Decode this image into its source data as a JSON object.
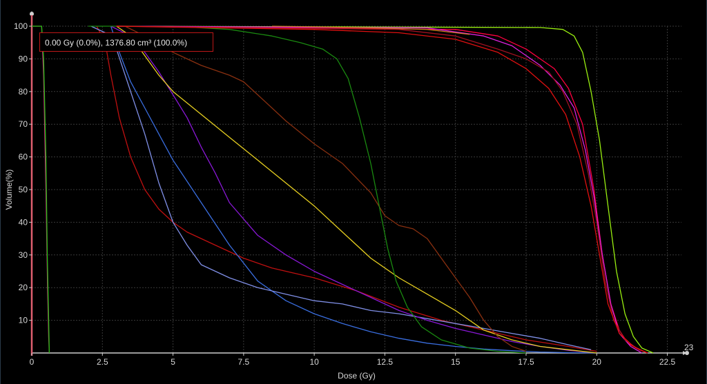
{
  "readout": "0.00 Gy (0.0%), 1376.80 cm³ (100.0%)",
  "axis_max_label": "23",
  "chart_data": {
    "type": "line",
    "xlabel": "Dose (Gy)",
    "ylabel": "Volume(%)",
    "xlim": [
      0,
      23
    ],
    "ylim": [
      0,
      100
    ],
    "xticks": [
      "0",
      "2.5",
      "5",
      "7.5",
      "10",
      "12.5",
      "15",
      "17.5",
      "20",
      "22.5"
    ],
    "yticks": [
      "10",
      "20",
      "30",
      "40",
      "50",
      "60",
      "70",
      "80",
      "90",
      "100"
    ],
    "grid": true,
    "series": [
      {
        "color": "#e0208a",
        "points": [
          [
            0,
            100
          ],
          [
            0.35,
            100
          ],
          [
            0.42,
            85
          ],
          [
            0.5,
            50
          ],
          [
            0.56,
            20
          ],
          [
            0.6,
            5
          ],
          [
            0.62,
            0
          ]
        ]
      },
      {
        "color": "#22c010",
        "points": [
          [
            0,
            100
          ],
          [
            0.35,
            100
          ],
          [
            0.42,
            90
          ],
          [
            0.5,
            60
          ],
          [
            0.55,
            30
          ],
          [
            0.6,
            10
          ],
          [
            0.62,
            0
          ]
        ]
      },
      {
        "color": "#c01010",
        "points": [
          [
            2.3,
            100
          ],
          [
            2.6,
            95
          ],
          [
            2.8,
            85
          ],
          [
            3.1,
            72
          ],
          [
            3.5,
            60
          ],
          [
            4,
            50
          ],
          [
            4.5,
            44
          ],
          [
            5,
            40
          ],
          [
            5.5,
            37
          ],
          [
            6.5,
            33
          ],
          [
            7.5,
            29
          ],
          [
            8.5,
            26
          ],
          [
            10,
            23
          ],
          [
            11.5,
            19
          ],
          [
            13,
            14
          ],
          [
            14.5,
            10
          ],
          [
            16,
            7
          ],
          [
            17.5,
            4
          ],
          [
            19,
            2
          ],
          [
            20,
            0.5
          ]
        ]
      },
      {
        "color": "#3a6ee0",
        "points": [
          [
            2.8,
            100
          ],
          [
            3.1,
            92
          ],
          [
            3.5,
            83
          ],
          [
            4,
            75
          ],
          [
            4.5,
            67
          ],
          [
            5,
            59
          ],
          [
            6,
            46
          ],
          [
            7,
            33
          ],
          [
            8,
            22
          ],
          [
            9,
            16
          ],
          [
            10,
            12
          ],
          [
            11,
            9
          ],
          [
            12,
            6.5
          ],
          [
            13,
            4.5
          ],
          [
            14,
            3
          ],
          [
            15,
            2
          ],
          [
            16,
            1.2
          ],
          [
            17,
            0.7
          ],
          [
            18,
            0.3
          ],
          [
            19,
            0.1
          ],
          [
            20,
            0
          ]
        ]
      },
      {
        "color": "#8090e8",
        "points": [
          [
            2.1,
            100
          ],
          [
            2.6,
            98
          ],
          [
            3,
            93
          ],
          [
            3.5,
            80
          ],
          [
            4,
            67
          ],
          [
            4.5,
            52
          ],
          [
            5,
            40
          ],
          [
            5.5,
            33
          ],
          [
            6,
            27
          ],
          [
            7,
            23
          ],
          [
            8,
            20
          ],
          [
            9,
            18
          ],
          [
            10,
            16
          ],
          [
            11,
            15
          ],
          [
            12,
            13
          ],
          [
            13,
            12
          ],
          [
            14,
            10.5
          ],
          [
            15,
            9
          ],
          [
            16,
            7.5
          ],
          [
            17,
            6
          ],
          [
            18,
            4.5
          ],
          [
            19,
            2.5
          ],
          [
            19.8,
            1
          ]
        ]
      },
      {
        "color": "#8a18d8",
        "points": [
          [
            2.8,
            100
          ],
          [
            3.5,
            97
          ],
          [
            4,
            92
          ],
          [
            4.5,
            86
          ],
          [
            5,
            79
          ],
          [
            5.5,
            72
          ],
          [
            6,
            63
          ],
          [
            6.5,
            55
          ],
          [
            7,
            46
          ],
          [
            8,
            36
          ],
          [
            9,
            30
          ],
          [
            10,
            25
          ],
          [
            11,
            21
          ],
          [
            12,
            17
          ],
          [
            13,
            13
          ],
          [
            14,
            10
          ],
          [
            15,
            7.5
          ],
          [
            16,
            5.5
          ],
          [
            17,
            3.5
          ],
          [
            18,
            2
          ],
          [
            19,
            0.8
          ],
          [
            20,
            0
          ]
        ]
      },
      {
        "color": "#e8d020",
        "points": [
          [
            3,
            100
          ],
          [
            3.5,
            97
          ],
          [
            4,
            91
          ],
          [
            4.5,
            85
          ],
          [
            5,
            80
          ],
          [
            6,
            73
          ],
          [
            7,
            66
          ],
          [
            8,
            59
          ],
          [
            9,
            52
          ],
          [
            10,
            45
          ],
          [
            11,
            37
          ],
          [
            12,
            29
          ],
          [
            13,
            23
          ],
          [
            14,
            18
          ],
          [
            15,
            13
          ],
          [
            16,
            7
          ],
          [
            17,
            4
          ],
          [
            18,
            2
          ],
          [
            19,
            1
          ],
          [
            20,
            0
          ]
        ]
      },
      {
        "color": "#8a3010",
        "points": [
          [
            3.3,
            100
          ],
          [
            4,
            97
          ],
          [
            5,
            92
          ],
          [
            6,
            88
          ],
          [
            7,
            85
          ],
          [
            7.5,
            83
          ],
          [
            8,
            79
          ],
          [
            9,
            71
          ],
          [
            10,
            64
          ],
          [
            11,
            58
          ],
          [
            12,
            49
          ],
          [
            12.5,
            42
          ],
          [
            13,
            39
          ],
          [
            13.5,
            38
          ],
          [
            14,
            35
          ],
          [
            14.5,
            29
          ],
          [
            15,
            23
          ],
          [
            15.5,
            17
          ],
          [
            16,
            10
          ],
          [
            16.5,
            5
          ],
          [
            17,
            2
          ],
          [
            17.5,
            0.5
          ]
        ]
      },
      {
        "color": "#1a8a10",
        "points": [
          [
            2,
            100
          ],
          [
            5,
            100
          ],
          [
            7,
            99
          ],
          [
            8.5,
            97
          ],
          [
            9.5,
            95
          ],
          [
            10.3,
            93
          ],
          [
            10.8,
            90
          ],
          [
            11.2,
            84
          ],
          [
            11.6,
            72
          ],
          [
            12,
            58
          ],
          [
            12.3,
            45
          ],
          [
            12.6,
            32
          ],
          [
            12.9,
            22
          ],
          [
            13.3,
            14
          ],
          [
            13.8,
            8
          ],
          [
            14.5,
            4
          ],
          [
            15.5,
            1.5
          ],
          [
            16.5,
            0.5
          ],
          [
            17.5,
            0
          ]
        ]
      },
      {
        "color": "#9af010",
        "points": [
          [
            3,
            100
          ],
          [
            18,
            99.6
          ],
          [
            18.8,
            99
          ],
          [
            19.2,
            97
          ],
          [
            19.5,
            92
          ],
          [
            19.8,
            80
          ],
          [
            20.1,
            65
          ],
          [
            20.4,
            45
          ],
          [
            20.7,
            25
          ],
          [
            21,
            12
          ],
          [
            21.3,
            5
          ],
          [
            21.6,
            1.5
          ],
          [
            22,
            0
          ]
        ]
      },
      {
        "color": "#ff0040",
        "points": [
          [
            3,
            100
          ],
          [
            15,
            99
          ],
          [
            16.5,
            97
          ],
          [
            17.5,
            93
          ],
          [
            18.5,
            87
          ],
          [
            19,
            81
          ],
          [
            19.5,
            70
          ],
          [
            19.9,
            50
          ],
          [
            20.2,
            30
          ],
          [
            20.5,
            15
          ],
          [
            20.8,
            7
          ],
          [
            21.1,
            3
          ],
          [
            21.5,
            1
          ],
          [
            21.8,
            0
          ]
        ]
      },
      {
        "color": "#e020e0",
        "points": [
          [
            3,
            100
          ],
          [
            14,
            99.5
          ],
          [
            16,
            97
          ],
          [
            17,
            94
          ],
          [
            18,
            88
          ],
          [
            18.7,
            82
          ],
          [
            19.2,
            75
          ],
          [
            19.6,
            62
          ],
          [
            19.9,
            48
          ],
          [
            20.2,
            30
          ],
          [
            20.5,
            15
          ],
          [
            20.8,
            6
          ],
          [
            21.2,
            2
          ],
          [
            21.6,
            0
          ]
        ]
      },
      {
        "color": "#a01020",
        "points": [
          [
            3,
            100
          ],
          [
            13,
            99
          ],
          [
            15,
            97
          ],
          [
            16.5,
            93
          ],
          [
            17.5,
            90
          ],
          [
            18.3,
            86
          ],
          [
            18.8,
            80
          ],
          [
            19.3,
            70
          ],
          [
            19.7,
            55
          ],
          [
            20,
            40
          ],
          [
            20.3,
            22
          ],
          [
            20.6,
            10
          ],
          [
            21,
            4
          ],
          [
            21.5,
            1
          ],
          [
            21.8,
            0
          ]
        ]
      },
      {
        "color": "#e01010",
        "points": [
          [
            3,
            100
          ],
          [
            10,
            99
          ],
          [
            13,
            98
          ],
          [
            15,
            96
          ],
          [
            16.5,
            92
          ],
          [
            17.5,
            87
          ],
          [
            18.3,
            81
          ],
          [
            18.9,
            73
          ],
          [
            19.4,
            60
          ],
          [
            19.8,
            45
          ],
          [
            20.1,
            30
          ],
          [
            20.4,
            15
          ],
          [
            20.8,
            6
          ],
          [
            21.3,
            2
          ],
          [
            21.8,
            0
          ]
        ]
      },
      {
        "color": "#d08020",
        "points": [
          [
            8.5,
            100
          ],
          [
            10,
            99.8
          ],
          [
            12,
            99.5
          ],
          [
            14,
            99
          ],
          [
            15.5,
            97.5
          ]
        ]
      }
    ]
  }
}
